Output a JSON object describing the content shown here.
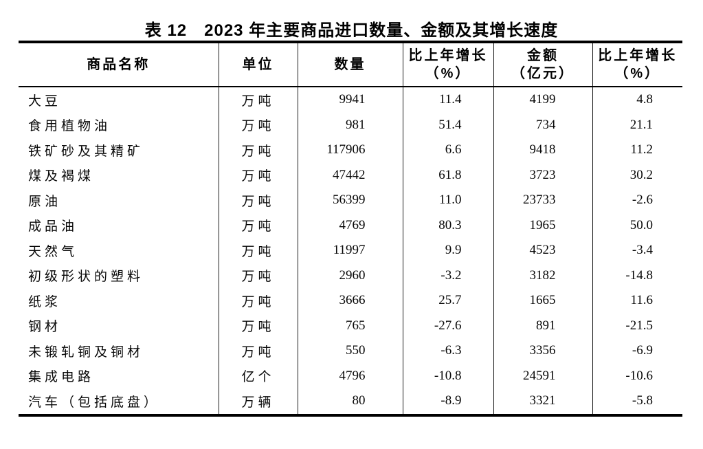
{
  "page": {
    "background_color": "#ffffff",
    "text_color": "#000000",
    "rule_color": "#000000"
  },
  "title": "表 12　2023 年主要商品进口数量、金额及其增长速度",
  "table": {
    "columns": [
      {
        "key": "name",
        "line1": "商品名称",
        "line2": ""
      },
      {
        "key": "unit",
        "line1": "单位",
        "line2": ""
      },
      {
        "key": "quantity",
        "line1": "数量",
        "line2": ""
      },
      {
        "key": "quantity_growth",
        "line1": "比上年增长",
        "line2": "（%）"
      },
      {
        "key": "amount",
        "line1": "金额",
        "line2": "（亿元）"
      },
      {
        "key": "amount_growth",
        "line1": "比上年增长",
        "line2": "（%）"
      }
    ],
    "rows": [
      {
        "name": "大豆",
        "unit": "万吨",
        "quantity": "9941",
        "quantity_growth": "11.4",
        "amount": "4199",
        "amount_growth": "4.8"
      },
      {
        "name": "食用植物油",
        "unit": "万吨",
        "quantity": "981",
        "quantity_growth": "51.4",
        "amount": "734",
        "amount_growth": "21.1"
      },
      {
        "name": "铁矿砂及其精矿",
        "unit": "万吨",
        "quantity": "117906",
        "quantity_growth": "6.6",
        "amount": "9418",
        "amount_growth": "11.2"
      },
      {
        "name": "煤及褐煤",
        "unit": "万吨",
        "quantity": "47442",
        "quantity_growth": "61.8",
        "amount": "3723",
        "amount_growth": "30.2"
      },
      {
        "name": "原油",
        "unit": "万吨",
        "quantity": "56399",
        "quantity_growth": "11.0",
        "amount": "23733",
        "amount_growth": "-2.6"
      },
      {
        "name": "成品油",
        "unit": "万吨",
        "quantity": "4769",
        "quantity_growth": "80.3",
        "amount": "1965",
        "amount_growth": "50.0"
      },
      {
        "name": "天然气",
        "unit": "万吨",
        "quantity": "11997",
        "quantity_growth": "9.9",
        "amount": "4523",
        "amount_growth": "-3.4"
      },
      {
        "name": "初级形状的塑料",
        "unit": "万吨",
        "quantity": "2960",
        "quantity_growth": "-3.2",
        "amount": "3182",
        "amount_growth": "-14.8"
      },
      {
        "name": "纸浆",
        "unit": "万吨",
        "quantity": "3666",
        "quantity_growth": "25.7",
        "amount": "1665",
        "amount_growth": "11.6"
      },
      {
        "name": "钢材",
        "unit": "万吨",
        "quantity": "765",
        "quantity_growth": "-27.6",
        "amount": "891",
        "amount_growth": "-21.5"
      },
      {
        "name": "未锻轧铜及铜材",
        "unit": "万吨",
        "quantity": "550",
        "quantity_growth": "-6.3",
        "amount": "3356",
        "amount_growth": "-6.9"
      },
      {
        "name": "集成电路",
        "unit": "亿个",
        "quantity": "4796",
        "quantity_growth": "-10.8",
        "amount": "24591",
        "amount_growth": "-10.6"
      },
      {
        "name": "汽车（包括底盘）",
        "unit": "万辆",
        "quantity": "80",
        "quantity_growth": "-8.9",
        "amount": "3321",
        "amount_growth": "-5.8"
      }
    ]
  },
  "chart_data": {
    "type": "table",
    "title": "表 12　2023 年主要商品进口数量、金额及其增长速度",
    "columns": [
      "商品名称",
      "单位",
      "数量",
      "比上年增长（%）",
      "金额（亿元）",
      "比上年增长（%）"
    ],
    "rows": [
      [
        "大豆",
        "万吨",
        9941,
        11.4,
        4199,
        4.8
      ],
      [
        "食用植物油",
        "万吨",
        981,
        51.4,
        734,
        21.1
      ],
      [
        "铁矿砂及其精矿",
        "万吨",
        117906,
        6.6,
        9418,
        11.2
      ],
      [
        "煤及褐煤",
        "万吨",
        47442,
        61.8,
        3723,
        30.2
      ],
      [
        "原油",
        "万吨",
        56399,
        11.0,
        23733,
        -2.6
      ],
      [
        "成品油",
        "万吨",
        4769,
        80.3,
        1965,
        50.0
      ],
      [
        "天然气",
        "万吨",
        11997,
        9.9,
        4523,
        -3.4
      ],
      [
        "初级形状的塑料",
        "万吨",
        2960,
        -3.2,
        3182,
        -14.8
      ],
      [
        "纸浆",
        "万吨",
        3666,
        25.7,
        1665,
        11.6
      ],
      [
        "钢材",
        "万吨",
        765,
        -27.6,
        891,
        -21.5
      ],
      [
        "未锻轧铜及铜材",
        "万吨",
        550,
        -6.3,
        3356,
        -6.9
      ],
      [
        "集成电路",
        "亿个",
        4796,
        -10.8,
        24591,
        -10.6
      ],
      [
        "汽车（包括底盘）",
        "万辆",
        80,
        -8.9,
        3321,
        -5.8
      ]
    ]
  }
}
